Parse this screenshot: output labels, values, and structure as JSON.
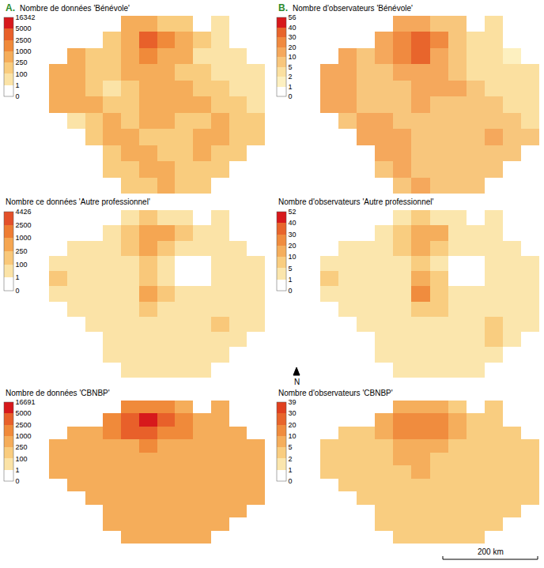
{
  "panel_labels": [
    "A.",
    "B."
  ],
  "north": "N",
  "scale_bar": "200 km",
  "chart_data": [
    {
      "type": "heatmap",
      "title": "Nombre de données 'Bénévole'",
      "tick_labels": false,
      "color_ticks": [
        0,
        1,
        100,
        250,
        1000,
        2500,
        5000,
        16342
      ],
      "colors": [
        "#ffffff",
        "#fbe3a7",
        "#f9cc7e",
        "#f5ad5a",
        "#f08a3a",
        "#e8602a",
        "#d7191c"
      ],
      "cells": [
        [
          null,
          null,
          null,
          null,
          300,
          600,
          200,
          150,
          null,
          20,
          null,
          null
        ],
        [
          null,
          null,
          null,
          200,
          800,
          3000,
          1500,
          300,
          100,
          30,
          null,
          null
        ],
        [
          null,
          300,
          150,
          200,
          600,
          2000,
          800,
          400,
          80,
          40,
          30,
          null
        ],
        [
          600,
          500,
          150,
          100,
          300,
          400,
          300,
          200,
          150,
          50,
          30,
          40
        ],
        [
          700,
          600,
          200,
          80,
          200,
          300,
          600,
          500,
          200,
          100,
          60,
          50
        ],
        [
          500,
          400,
          300,
          150,
          100,
          700,
          300,
          250,
          300,
          200,
          100,
          80
        ],
        [
          null,
          80,
          200,
          300,
          200,
          400,
          250,
          150,
          200,
          300,
          150,
          100
        ],
        [
          null,
          null,
          150,
          250,
          300,
          200,
          150,
          200,
          250,
          400,
          200,
          150
        ],
        [
          null,
          null,
          null,
          200,
          300,
          250,
          200,
          150,
          300,
          200,
          150,
          null
        ],
        [
          null,
          null,
          null,
          150,
          200,
          300,
          250,
          200,
          100,
          200,
          null,
          null
        ],
        [
          null,
          null,
          null,
          null,
          150,
          200,
          300,
          200,
          150,
          null,
          null,
          null
        ]
      ]
    },
    {
      "type": "heatmap",
      "title": "Nombre ce données 'Autre professionnel'",
      "tick_labels": false,
      "color_ticks": [
        0,
        1,
        100,
        250,
        1000,
        2500,
        4426
      ],
      "colors": [
        "#ffffff",
        "#fbe3a7",
        "#f9c87a",
        "#f5a652",
        "#ee7d33",
        "#e3502a"
      ],
      "cells": [
        [
          null,
          null,
          null,
          null,
          50,
          150,
          80,
          30,
          null,
          10,
          null,
          null
        ],
        [
          null,
          null,
          null,
          60,
          200,
          600,
          300,
          100,
          30,
          10,
          null,
          null
        ],
        [
          null,
          40,
          50,
          80,
          150,
          400,
          200,
          80,
          20,
          5,
          10,
          null
        ],
        [
          60,
          80,
          40,
          30,
          80,
          120,
          60,
          0,
          0,
          20,
          10,
          20
        ],
        [
          100,
          60,
          50,
          40,
          60,
          150,
          80,
          0,
          0,
          30,
          30,
          40
        ],
        [
          50,
          40,
          60,
          50,
          80,
          300,
          100,
          60,
          40,
          50,
          60,
          80
        ],
        [
          null,
          30,
          40,
          60,
          70,
          100,
          80,
          50,
          60,
          80,
          50,
          40
        ],
        [
          null,
          null,
          50,
          80,
          60,
          50,
          40,
          60,
          80,
          100,
          60,
          40
        ],
        [
          null,
          null,
          null,
          60,
          40,
          50,
          60,
          70,
          50,
          80,
          40,
          null
        ],
        [
          null,
          null,
          null,
          50,
          40,
          60,
          80,
          40,
          30,
          60,
          null,
          null
        ],
        [
          null,
          null,
          null,
          null,
          40,
          50,
          60,
          50,
          30,
          null,
          null,
          null
        ]
      ]
    },
    {
      "type": "heatmap",
      "title": "Nombre de données 'CBNBP'",
      "tick_labels": false,
      "color_ticks": [
        0,
        1,
        100,
        250,
        1000,
        2500,
        5000,
        16691
      ],
      "colors": [
        "#ffffff",
        "#fbe3a7",
        "#f9cc7e",
        "#f5ad5a",
        "#f08a3a",
        "#e8602a",
        "#d7191c"
      ],
      "cells": [
        [
          null,
          null,
          null,
          null,
          1500,
          2000,
          1200,
          800,
          null,
          400,
          null,
          null
        ],
        [
          null,
          null,
          null,
          1500,
          3000,
          6000,
          3500,
          1500,
          600,
          400,
          null,
          null
        ],
        [
          null,
          500,
          700,
          1500,
          2500,
          3000,
          2000,
          1000,
          500,
          400,
          350,
          null
        ],
        [
          400,
          450,
          500,
          600,
          800,
          1200,
          700,
          500,
          400,
          400,
          300,
          350
        ],
        [
          500,
          400,
          450,
          500,
          600,
          700,
          500,
          450,
          400,
          450,
          400,
          350
        ],
        [
          400,
          350,
          450,
          500,
          550,
          600,
          500,
          400,
          450,
          500,
          400,
          400
        ],
        [
          null,
          350,
          400,
          500,
          450,
          500,
          450,
          400,
          450,
          500,
          450,
          400
        ],
        [
          null,
          null,
          400,
          450,
          500,
          450,
          400,
          450,
          400,
          450,
          400,
          350
        ],
        [
          null,
          null,
          null,
          400,
          450,
          500,
          450,
          400,
          450,
          400,
          350,
          null
        ],
        [
          null,
          null,
          null,
          350,
          400,
          450,
          500,
          400,
          350,
          400,
          null,
          null
        ],
        [
          null,
          null,
          null,
          null,
          400,
          450,
          400,
          350,
          400,
          null,
          null,
          null
        ]
      ]
    },
    {
      "type": "heatmap",
      "title": "Nombre d'observateurs 'Bénévole'",
      "tick_labels": false,
      "color_ticks": [
        0,
        1,
        2,
        5,
        10,
        20,
        30,
        40,
        56
      ],
      "colors": [
        "#ffffff",
        "#fdf0c0",
        "#fbe0a0",
        "#f8c67c",
        "#f5a85c",
        "#f08a40",
        "#e8652c",
        "#d7191c"
      ],
      "cells": [
        [
          null,
          null,
          null,
          null,
          10,
          15,
          8,
          5,
          null,
          2,
          null,
          null
        ],
        [
          null,
          null,
          null,
          10,
          20,
          35,
          25,
          8,
          3,
          2,
          null,
          null
        ],
        [
          null,
          10,
          8,
          12,
          20,
          30,
          15,
          8,
          3,
          2,
          1,
          null
        ],
        [
          15,
          12,
          8,
          6,
          10,
          12,
          10,
          6,
          4,
          2,
          2,
          3
        ],
        [
          15,
          12,
          8,
          5,
          8,
          10,
          12,
          10,
          6,
          4,
          3,
          3
        ],
        [
          10,
          10,
          8,
          6,
          6,
          12,
          8,
          8,
          6,
          5,
          4,
          4
        ],
        [
          null,
          8,
          10,
          12,
          8,
          8,
          6,
          5,
          6,
          8,
          6,
          4
        ],
        [
          null,
          null,
          12,
          15,
          10,
          6,
          5,
          6,
          8,
          10,
          8,
          6
        ],
        [
          null,
          null,
          null,
          12,
          10,
          8,
          6,
          5,
          6,
          8,
          6,
          null
        ],
        [
          null,
          null,
          null,
          8,
          10,
          8,
          8,
          6,
          5,
          6,
          null,
          null
        ],
        [
          null,
          null,
          null,
          null,
          8,
          10,
          8,
          6,
          5,
          null,
          null,
          null
        ]
      ]
    },
    {
      "type": "heatmap",
      "title": "Nombre d'observateurs 'Autre professionnel'",
      "tick_labels": false,
      "color_ticks": [
        0,
        1,
        5,
        10,
        20,
        30,
        40,
        52
      ],
      "colors": [
        "#ffffff",
        "#fbe6ad",
        "#f9cd80",
        "#f5ae5c",
        "#f08c3e",
        "#e8652c",
        "#d7191c"
      ],
      "cells": [
        [
          null,
          null,
          null,
          null,
          3,
          6,
          4,
          2,
          null,
          1,
          null,
          null
        ],
        [
          null,
          null,
          null,
          4,
          8,
          15,
          10,
          4,
          2,
          1,
          null,
          null
        ],
        [
          null,
          3,
          3,
          4,
          8,
          12,
          8,
          4,
          2,
          1,
          1,
          null
        ],
        [
          4,
          4,
          3,
          2,
          4,
          6,
          4,
          0,
          0,
          1,
          1,
          2
        ],
        [
          5,
          4,
          3,
          3,
          4,
          10,
          5,
          0,
          0,
          2,
          2,
          2
        ],
        [
          3,
          3,
          3,
          3,
          4,
          20,
          6,
          3,
          2,
          3,
          3,
          4
        ],
        [
          null,
          2,
          3,
          4,
          4,
          8,
          5,
          3,
          3,
          4,
          3,
          2
        ],
        [
          null,
          null,
          3,
          4,
          3,
          3,
          3,
          4,
          4,
          6,
          3,
          2
        ],
        [
          null,
          null,
          null,
          3,
          3,
          3,
          4,
          4,
          3,
          5,
          2,
          null
        ],
        [
          null,
          null,
          null,
          3,
          2,
          3,
          4,
          3,
          2,
          3,
          null,
          null
        ],
        [
          null,
          null,
          null,
          null,
          2,
          3,
          4,
          3,
          2,
          null,
          null,
          null
        ]
      ]
    },
    {
      "type": "heatmap",
      "title": "Nombre d'observateurs 'CBNBP'",
      "tick_labels": false,
      "color_ticks": [
        0,
        1,
        2,
        5,
        10,
        20,
        30,
        39
      ],
      "colors": [
        "#ffffff",
        "#fbe6ad",
        "#f9cd80",
        "#f5ae5c",
        "#f08c3e",
        "#e8652c",
        "#e0401f"
      ],
      "cells": [
        [
          null,
          null,
          null,
          null,
          6,
          8,
          6,
          4,
          null,
          3,
          null,
          null
        ],
        [
          null,
          null,
          null,
          6,
          12,
          18,
          14,
          7,
          4,
          3,
          null,
          null
        ],
        [
          null,
          3,
          4,
          7,
          12,
          15,
          10,
          6,
          4,
          3,
          3,
          null
        ],
        [
          3,
          3,
          4,
          4,
          6,
          8,
          5,
          4,
          3,
          3,
          3,
          3
        ],
        [
          4,
          3,
          3,
          4,
          5,
          6,
          4,
          4,
          3,
          3,
          3,
          3
        ],
        [
          3,
          3,
          3,
          4,
          4,
          5,
          4,
          3,
          3,
          4,
          3,
          3
        ],
        [
          null,
          3,
          3,
          4,
          4,
          4,
          4,
          3,
          4,
          4,
          3,
          3
        ],
        [
          null,
          null,
          3,
          4,
          4,
          4,
          3,
          4,
          3,
          4,
          3,
          3
        ],
        [
          null,
          null,
          null,
          3,
          4,
          4,
          4,
          3,
          4,
          3,
          3,
          null
        ],
        [
          null,
          null,
          null,
          3,
          3,
          4,
          4,
          3,
          3,
          3,
          null,
          null
        ],
        [
          null,
          null,
          null,
          null,
          3,
          4,
          3,
          3,
          3,
          null,
          null,
          null
        ]
      ]
    }
  ]
}
